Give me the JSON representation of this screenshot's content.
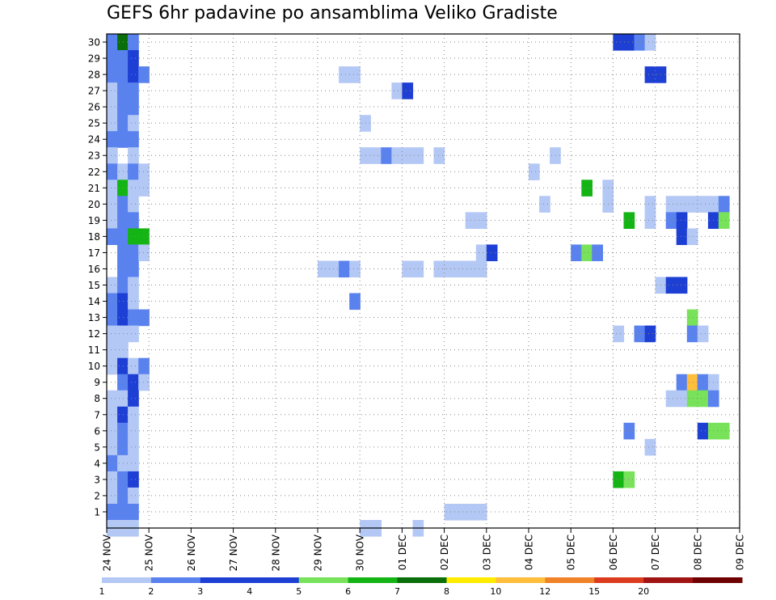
{
  "chart_data": {
    "type": "heatmap",
    "title": "GEFS 6hr padavine po ansamblima Veliko Gradiste",
    "xlabel": "",
    "ylabel": "",
    "x_ticks": [
      "24 NOV",
      "25 NOV",
      "26 NOV",
      "27 NOV",
      "28 NOV",
      "29 NOV",
      "30 NOV",
      "01 DEC",
      "02 DEC",
      "03 DEC",
      "04 DEC",
      "05 DEC",
      "06 DEC",
      "07 DEC",
      "08 DEC",
      "09 DEC"
    ],
    "y_ticks": [
      "1",
      "2",
      "3",
      "4",
      "5",
      "6",
      "7",
      "8",
      "9",
      "10",
      "11",
      "12",
      "13",
      "14",
      "15",
      "16",
      "17",
      "18",
      "19",
      "20",
      "21",
      "22",
      "23",
      "24",
      "25",
      "26",
      "27",
      "28",
      "29",
      "30"
    ],
    "y_range": [
      0,
      30
    ],
    "grid": true,
    "colorbar": {
      "thresholds": [
        "1",
        "2",
        "3",
        "4",
        "5",
        "6",
        "7",
        "8",
        "10",
        "12",
        "15",
        "20"
      ],
      "colors": [
        "#b4c8f5",
        "#5a82ee",
        "#1e3fd4",
        "#1e3fd4",
        "#78e25a",
        "#14b414",
        "#0a6e0a",
        "#ffeb00",
        "#ffbe3c",
        "#f08228",
        "#dc3c1e",
        "#a01414",
        "#6e0000"
      ]
    },
    "cells": [
      {
        "m": 30,
        "s": [
          0,
          3
        ],
        "c": [
          "#5a82ee",
          "#0a6e0a",
          "#5a82ee"
        ]
      },
      {
        "m": 29,
        "s": [
          0,
          2
        ],
        "c": [
          "#5a82ee",
          "#5a82ee",
          "#1e3fd4"
        ]
      },
      {
        "m": 28,
        "s": [
          0,
          3
        ],
        "c": [
          "#5a82ee",
          "#5a82ee",
          "#1e3fd4",
          "#5a82ee"
        ]
      },
      {
        "m": 27,
        "s": [
          0,
          2
        ],
        "c": [
          "#b4c8f5",
          "#5a82ee",
          "#5a82ee"
        ]
      },
      {
        "m": 26,
        "s": [
          0,
          2
        ],
        "c": [
          "#b4c8f5",
          "#5a82ee",
          "#5a82ee"
        ]
      },
      {
        "m": 25,
        "s": [
          0,
          2
        ],
        "c": [
          "#b4c8f5",
          "#5a82ee",
          "#b4c8f5"
        ]
      },
      {
        "m": 24,
        "s": [
          0,
          2
        ],
        "c": [
          "#5a82ee",
          "#5a82ee",
          "#5a82ee"
        ]
      },
      {
        "m": 23,
        "s": [
          0,
          2
        ],
        "c": [
          "#b4c8f5",
          "",
          "#b4c8f5"
        ]
      },
      {
        "m": 22,
        "s": [
          0,
          3
        ],
        "c": [
          "#5a82ee",
          "#b4c8f5",
          "#5a82ee",
          "#b4c8f5"
        ]
      },
      {
        "m": 21,
        "s": [
          0,
          3
        ],
        "c": [
          "#b4c8f5",
          "#14b414",
          "#b4c8f5",
          "#b4c8f5"
        ]
      },
      {
        "m": 20,
        "s": [
          0,
          2
        ],
        "c": [
          "#b4c8f5",
          "#5a82ee",
          "#b4c8f5"
        ]
      },
      {
        "m": 19,
        "s": [
          0,
          2
        ],
        "c": [
          "#b4c8f5",
          "#5a82ee",
          "#5a82ee"
        ]
      },
      {
        "m": 18,
        "s": [
          0,
          3
        ],
        "c": [
          "#5a82ee",
          "#5a82ee",
          "#14b414",
          "#14b414"
        ]
      },
      {
        "m": 17,
        "s": [
          1,
          3
        ],
        "c": [
          "#5a82ee",
          "#5a82ee",
          "#b4c8f5"
        ]
      },
      {
        "m": 16,
        "s": [
          1,
          2
        ],
        "c": [
          "#5a82ee",
          "#5a82ee"
        ]
      },
      {
        "m": 15,
        "s": [
          0,
          2
        ],
        "c": [
          "#b4c8f5",
          "#5a82ee",
          "#b4c8f5"
        ]
      },
      {
        "m": 14,
        "s": [
          0,
          2
        ],
        "c": [
          "#5a82ee",
          "#1e3fd4",
          "#b4c8f5"
        ]
      },
      {
        "m": 13,
        "s": [
          0,
          3
        ],
        "c": [
          "#5a82ee",
          "#1e3fd4",
          "#5a82ee",
          "#5a82ee"
        ]
      },
      {
        "m": 12,
        "s": [
          0,
          2
        ],
        "c": [
          "#b4c8f5",
          "#b4c8f5",
          "#b4c8f5"
        ]
      },
      {
        "m": 11,
        "s": [
          0,
          1
        ],
        "c": [
          "#b4c8f5",
          "#b4c8f5"
        ]
      },
      {
        "m": 10,
        "s": [
          0,
          3
        ],
        "c": [
          "#b4c8f5",
          "#1e3fd4",
          "#b4c8f5",
          "#5a82ee"
        ]
      },
      {
        "m": 9,
        "s": [
          1,
          3
        ],
        "c": [
          "#5a82ee",
          "#1e3fd4",
          "#b4c8f5"
        ]
      },
      {
        "m": 8,
        "s": [
          0,
          2
        ],
        "c": [
          "#b4c8f5",
          "#b4c8f5",
          "#1e3fd4"
        ]
      },
      {
        "m": 7,
        "s": [
          0,
          2
        ],
        "c": [
          "#b4c8f5",
          "#1e3fd4",
          "#b4c8f5"
        ]
      },
      {
        "m": 6,
        "s": [
          0,
          2
        ],
        "c": [
          "#b4c8f5",
          "#5a82ee",
          "#b4c8f5"
        ]
      },
      {
        "m": 5,
        "s": [
          0,
          2
        ],
        "c": [
          "#b4c8f5",
          "#5a82ee",
          "#b4c8f5"
        ]
      },
      {
        "m": 4,
        "s": [
          0,
          2
        ],
        "c": [
          "#5a82ee",
          "#b4c8f5",
          "#b4c8f5"
        ]
      },
      {
        "m": 3,
        "s": [
          0,
          2
        ],
        "c": [
          "#b4c8f5",
          "#5a82ee",
          "#1e3fd4"
        ]
      },
      {
        "m": 2,
        "s": [
          0,
          2
        ],
        "c": [
          "#b4c8f5",
          "#5a82ee",
          "#b4c8f5"
        ]
      },
      {
        "m": 1,
        "s": [
          0,
          2
        ],
        "c": [
          "#5a82ee",
          "#5a82ee",
          "#5a82ee"
        ]
      },
      {
        "m": 0,
        "s": [
          0,
          2
        ],
        "c": [
          "#b4c8f5",
          "#b4c8f5",
          "#b4c8f5"
        ]
      },
      {
        "m": 28,
        "s": [
          22,
          23
        ],
        "c": [
          "#b4c8f5",
          "#b4c8f5"
        ]
      },
      {
        "m": 27,
        "s": [
          27,
          28
        ],
        "c": [
          "#b4c8f5",
          "#1e3fd4"
        ]
      },
      {
        "m": 25,
        "s": [
          24,
          24
        ],
        "c": [
          "#b4c8f5"
        ]
      },
      {
        "m": 23,
        "s": [
          24,
          29
        ],
        "c": [
          "#b4c8f5",
          "#b4c8f5",
          "#5a82ee",
          "#b4c8f5",
          "#b4c8f5",
          "#b4c8f5"
        ]
      },
      {
        "m": 23,
        "s": [
          31,
          31
        ],
        "c": [
          "#b4c8f5"
        ]
      },
      {
        "m": 23,
        "s": [
          42,
          42
        ],
        "c": [
          "#b4c8f5"
        ]
      },
      {
        "m": 22,
        "s": [
          40,
          40
        ],
        "c": [
          "#b4c8f5"
        ]
      },
      {
        "m": 21,
        "s": [
          45,
          45
        ],
        "c": [
          "#14b414"
        ]
      },
      {
        "m": 21,
        "s": [
          47,
          47
        ],
        "c": [
          "#b4c8f5"
        ]
      },
      {
        "m": 20,
        "s": [
          41,
          41
        ],
        "c": [
          "#b4c8f5"
        ]
      },
      {
        "m": 20,
        "s": [
          47,
          47
        ],
        "c": [
          "#b4c8f5"
        ]
      },
      {
        "m": 20,
        "s": [
          51,
          51
        ],
        "c": [
          "#b4c8f5"
        ]
      },
      {
        "m": 20,
        "s": [
          53,
          58
        ],
        "c": [
          "#b4c8f5",
          "#b4c8f5",
          "#b4c8f5",
          "#b4c8f5",
          "#b4c8f5",
          "#5a82ee"
        ]
      },
      {
        "m": 19,
        "s": [
          34,
          35
        ],
        "c": [
          "#b4c8f5",
          "#b4c8f5"
        ]
      },
      {
        "m": 19,
        "s": [
          49,
          49
        ],
        "c": [
          "#14b414"
        ]
      },
      {
        "m": 19,
        "s": [
          51,
          51
        ],
        "c": [
          "#b4c8f5"
        ]
      },
      {
        "m": 19,
        "s": [
          53,
          54
        ],
        "c": [
          "#5a82ee",
          "#1e3fd4"
        ]
      },
      {
        "m": 19,
        "s": [
          57,
          58
        ],
        "c": [
          "#1e3fd4",
          "#78e25a"
        ]
      },
      {
        "m": 18,
        "s": [
          54,
          55
        ],
        "c": [
          "#1e3fd4",
          "#b4c8f5"
        ]
      },
      {
        "m": 17,
        "s": [
          35,
          36
        ],
        "c": [
          "#b4c8f5",
          "#1e3fd4"
        ]
      },
      {
        "m": 16,
        "s": [
          20,
          23
        ],
        "c": [
          "#b4c8f5",
          "#b4c8f5",
          "#5a82ee",
          "#b4c8f5"
        ]
      },
      {
        "m": 16,
        "s": [
          28,
          29
        ],
        "c": [
          "#b4c8f5",
          "#b4c8f5"
        ]
      },
      {
        "m": 16,
        "s": [
          31,
          35
        ],
        "c": [
          "#b4c8f5",
          "#b4c8f5",
          "#b4c8f5",
          "#b4c8f5",
          "#b4c8f5"
        ]
      },
      {
        "m": 17,
        "s": [
          44,
          46
        ],
        "c": [
          "#5a82ee",
          "#78e25a",
          "#5a82ee"
        ]
      },
      {
        "m": 15,
        "s": [
          52,
          54
        ],
        "c": [
          "#b4c8f5",
          "#1e3fd4",
          "#1e3fd4"
        ]
      },
      {
        "m": 14,
        "s": [
          23,
          23
        ],
        "c": [
          "#5a82ee"
        ]
      },
      {
        "m": 13,
        "s": [
          55,
          55
        ],
        "c": [
          "#78e25a"
        ]
      },
      {
        "m": 12,
        "s": [
          48,
          48
        ],
        "c": [
          "#b4c8f5"
        ]
      },
      {
        "m": 12,
        "s": [
          50,
          51
        ],
        "c": [
          "#5a82ee",
          "#1e3fd4"
        ]
      },
      {
        "m": 12,
        "s": [
          55,
          56
        ],
        "c": [
          "#5a82ee",
          "#b4c8f5"
        ]
      },
      {
        "m": 9,
        "s": [
          54,
          57
        ],
        "c": [
          "#5a82ee",
          "#ffbe3c",
          "#5a82ee",
          "#b4c8f5"
        ]
      },
      {
        "m": 8,
        "s": [
          53,
          57
        ],
        "c": [
          "#b4c8f5",
          "#b4c8f5",
          "#78e25a",
          "#78e25a",
          "#5a82ee"
        ]
      },
      {
        "m": 6,
        "s": [
          49,
          49
        ],
        "c": [
          "#5a82ee"
        ]
      },
      {
        "m": 6,
        "s": [
          56,
          58
        ],
        "c": [
          "#1e3fd4",
          "#78e25a",
          "#78e25a"
        ]
      },
      {
        "m": 5,
        "s": [
          51,
          51
        ],
        "c": [
          "#b4c8f5"
        ]
      },
      {
        "m": 3,
        "s": [
          48,
          49
        ],
        "c": [
          "#14b414",
          "#78e25a"
        ]
      },
      {
        "m": 1,
        "s": [
          32,
          35
        ],
        "c": [
          "#b4c8f5",
          "#b4c8f5",
          "#b4c8f5",
          "#b4c8f5"
        ]
      },
      {
        "m": 0,
        "s": [
          24,
          25
        ],
        "c": [
          "#b4c8f5",
          "#b4c8f5"
        ]
      },
      {
        "m": 0,
        "s": [
          29,
          29
        ],
        "c": [
          "#b4c8f5"
        ]
      },
      {
        "m": 30,
        "s": [
          48,
          50
        ],
        "c": [
          "#1e3fd4",
          "#1e3fd4",
          "#5a82ee"
        ]
      },
      {
        "m": 30,
        "s": [
          51,
          51
        ],
        "c": [
          "#b4c8f5"
        ]
      },
      {
        "m": 28,
        "s": [
          51,
          52
        ],
        "c": [
          "#1e3fd4",
          "#1e3fd4"
        ]
      }
    ]
  }
}
